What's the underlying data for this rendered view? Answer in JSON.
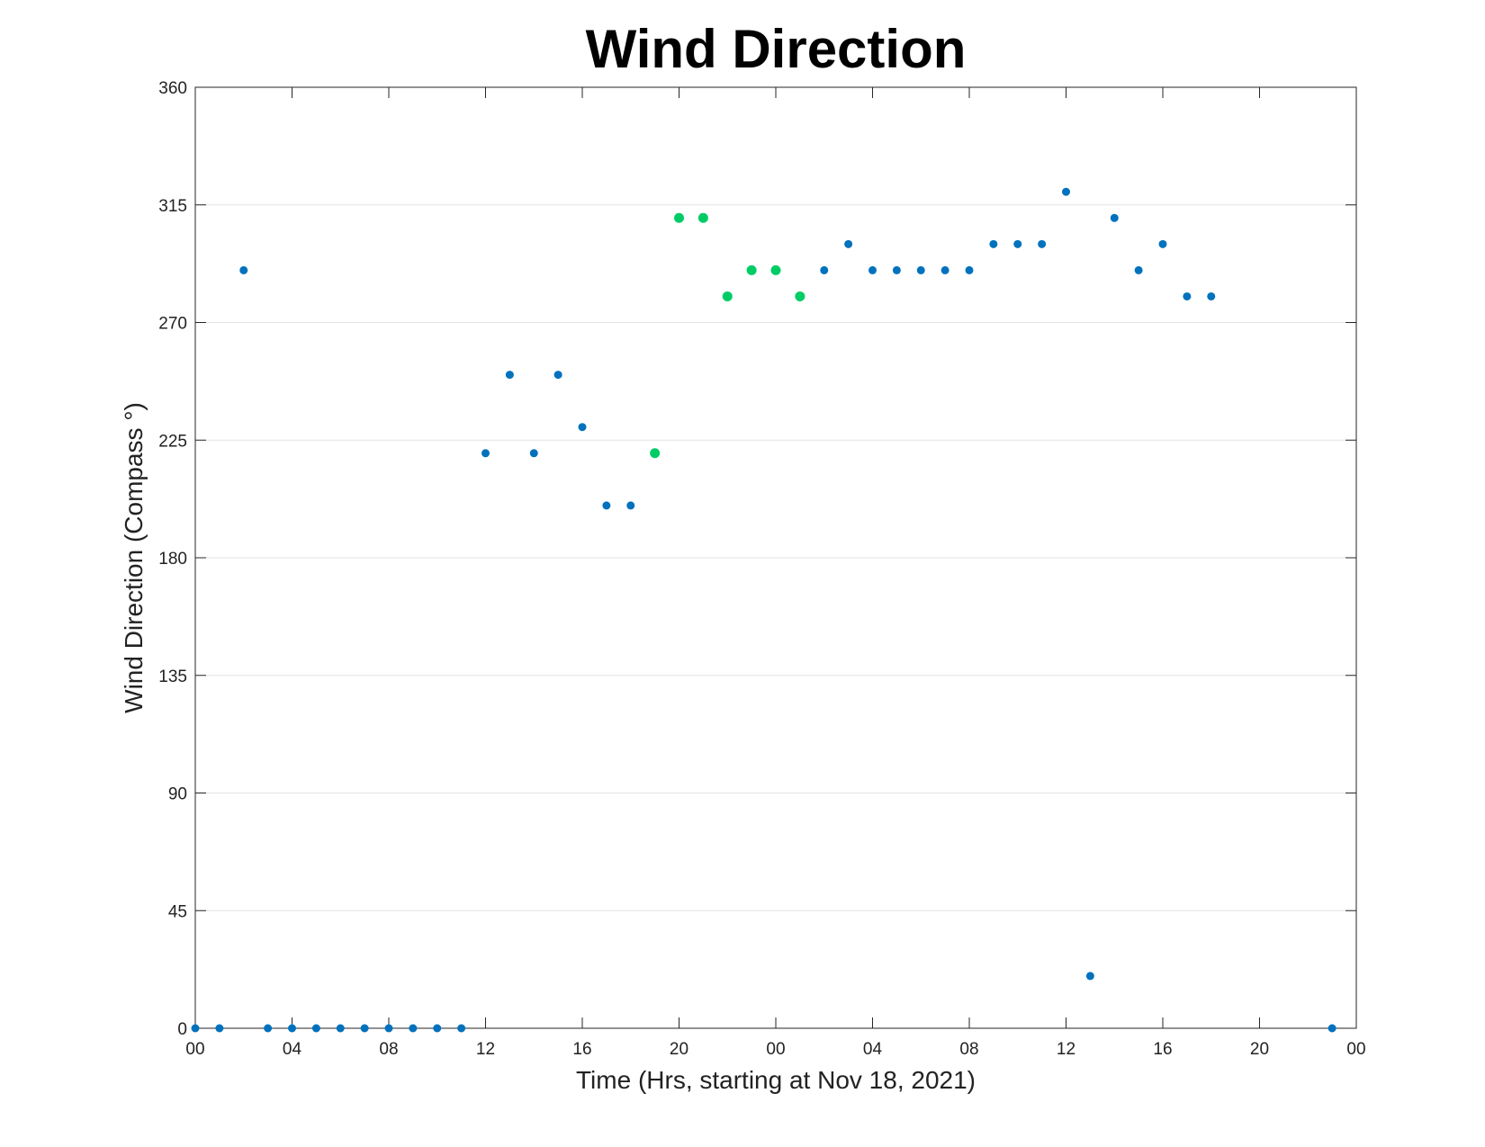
{
  "chart_data": {
    "type": "scatter",
    "title": "Wind Direction",
    "xlabel": "Time (Hrs, starting at Nov 18, 2021)",
    "ylabel": "Wind Direction (Compass °)",
    "xlim": [
      0,
      48
    ],
    "ylim": [
      0,
      360
    ],
    "x_unit": "hours",
    "x_ticks": [
      0,
      4,
      8,
      12,
      16,
      20,
      24,
      28,
      32,
      36,
      40,
      44,
      48
    ],
    "x_tick_labels": [
      "00",
      "04",
      "08",
      "12",
      "16",
      "20",
      "00",
      "04",
      "08",
      "12",
      "16",
      "20",
      "00"
    ],
    "y_ticks": [
      0,
      45,
      90,
      135,
      180,
      225,
      270,
      315,
      360
    ],
    "y_tick_labels": [
      "0",
      "45",
      "90",
      "135",
      "180",
      "225",
      "270",
      "315",
      "360"
    ],
    "grid": "horizontal",
    "colors": {
      "blue": "#0072BD",
      "green": "#00CC66",
      "grid": "#E3E3E3",
      "axis": "#262626"
    },
    "points": [
      {
        "x": 0,
        "y": 0,
        "color": "blue"
      },
      {
        "x": 1,
        "y": 0,
        "color": "blue"
      },
      {
        "x": 2,
        "y": 290,
        "color": "blue"
      },
      {
        "x": 3,
        "y": 0,
        "color": "blue"
      },
      {
        "x": 4,
        "y": 0,
        "color": "blue"
      },
      {
        "x": 5,
        "y": 0,
        "color": "blue"
      },
      {
        "x": 6,
        "y": 0,
        "color": "blue"
      },
      {
        "x": 7,
        "y": 0,
        "color": "blue"
      },
      {
        "x": 8,
        "y": 0,
        "color": "blue"
      },
      {
        "x": 9,
        "y": 0,
        "color": "blue"
      },
      {
        "x": 10,
        "y": 0,
        "color": "blue"
      },
      {
        "x": 11,
        "y": 0,
        "color": "blue"
      },
      {
        "x": 12,
        "y": 220,
        "color": "blue"
      },
      {
        "x": 13,
        "y": 250,
        "color": "blue"
      },
      {
        "x": 14,
        "y": 220,
        "color": "blue"
      },
      {
        "x": 15,
        "y": 250,
        "color": "blue"
      },
      {
        "x": 16,
        "y": 230,
        "color": "blue"
      },
      {
        "x": 17,
        "y": 200,
        "color": "blue"
      },
      {
        "x": 18,
        "y": 200,
        "color": "blue"
      },
      {
        "x": 19,
        "y": 220,
        "color": "green"
      },
      {
        "x": 20,
        "y": 310,
        "color": "green"
      },
      {
        "x": 21,
        "y": 310,
        "color": "green"
      },
      {
        "x": 22,
        "y": 280,
        "color": "green"
      },
      {
        "x": 23,
        "y": 290,
        "color": "green"
      },
      {
        "x": 24,
        "y": 290,
        "color": "green"
      },
      {
        "x": 25,
        "y": 280,
        "color": "green"
      },
      {
        "x": 26,
        "y": 290,
        "color": "blue"
      },
      {
        "x": 27,
        "y": 300,
        "color": "blue"
      },
      {
        "x": 28,
        "y": 290,
        "color": "blue"
      },
      {
        "x": 29,
        "y": 290,
        "color": "blue"
      },
      {
        "x": 30,
        "y": 290,
        "color": "blue"
      },
      {
        "x": 31,
        "y": 290,
        "color": "blue"
      },
      {
        "x": 32,
        "y": 290,
        "color": "blue"
      },
      {
        "x": 33,
        "y": 300,
        "color": "blue"
      },
      {
        "x": 34,
        "y": 300,
        "color": "blue"
      },
      {
        "x": 35,
        "y": 300,
        "color": "blue"
      },
      {
        "x": 36,
        "y": 320,
        "color": "blue"
      },
      {
        "x": 37,
        "y": 20,
        "color": "blue"
      },
      {
        "x": 38,
        "y": 310,
        "color": "blue"
      },
      {
        "x": 39,
        "y": 290,
        "color": "blue"
      },
      {
        "x": 40,
        "y": 300,
        "color": "blue"
      },
      {
        "x": 41,
        "y": 280,
        "color": "blue"
      },
      {
        "x": 42,
        "y": 280,
        "color": "blue"
      },
      {
        "x": 47,
        "y": 0,
        "color": "blue"
      }
    ]
  }
}
